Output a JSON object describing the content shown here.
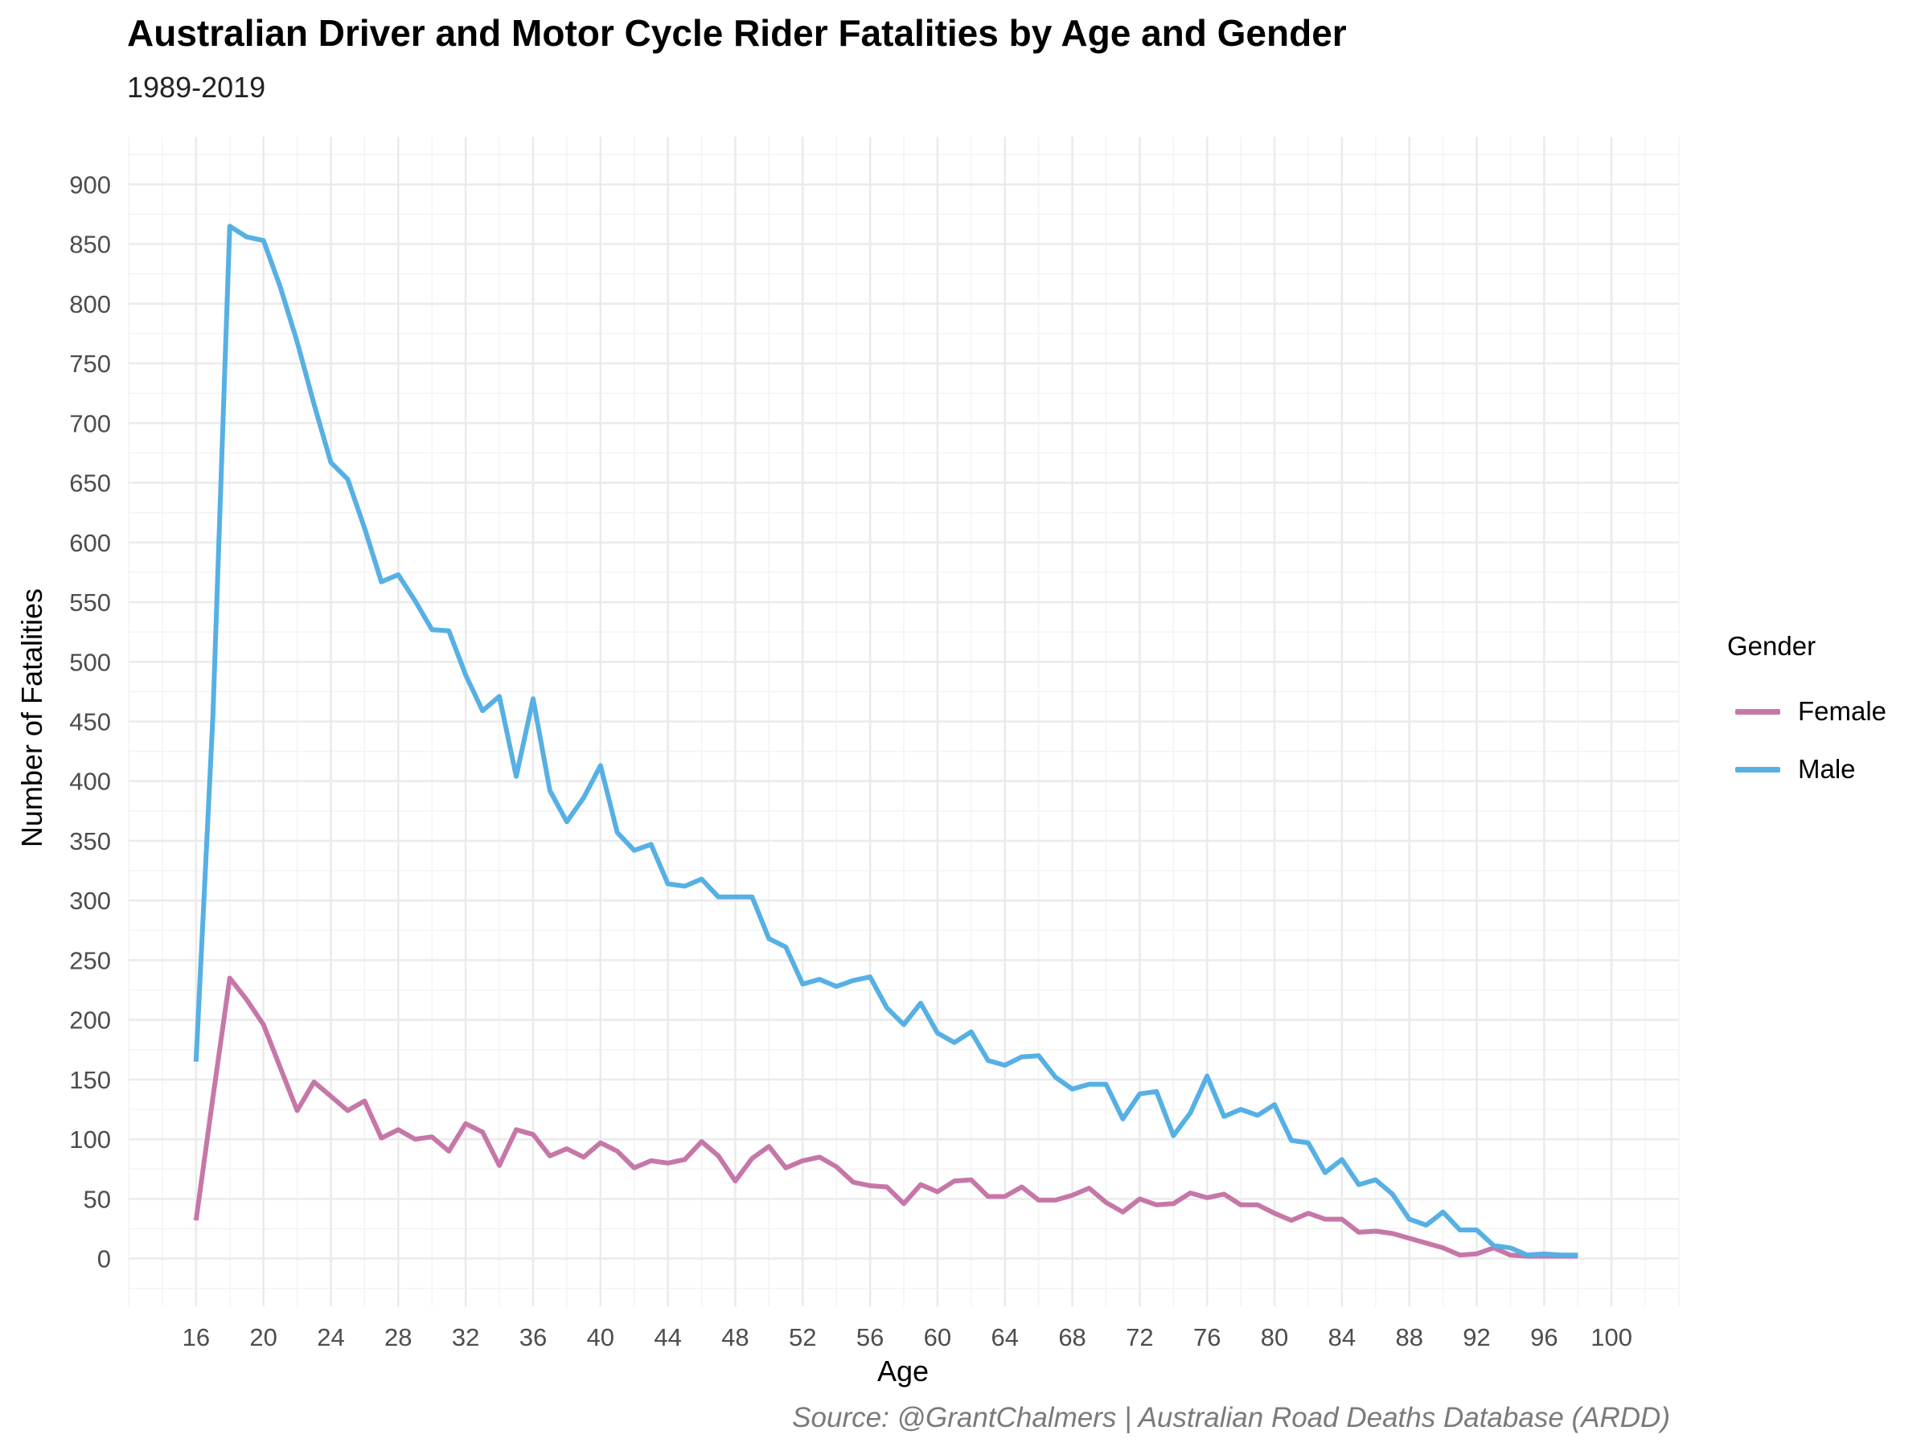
{
  "chart_data": {
    "type": "line",
    "title": "Australian Driver and Motor Cycle Rider Fatalities by Age and Gender",
    "subtitle": "1989-2019",
    "xlabel": "Age",
    "ylabel": "Number of Fatalities",
    "caption": "Source: @GrantChalmers | Australian Road Deaths Database (ARDD)",
    "xlim": [
      12,
      104
    ],
    "ylim": [
      -40,
      940
    ],
    "x_ticks": [
      16,
      20,
      24,
      28,
      32,
      36,
      40,
      44,
      48,
      52,
      56,
      60,
      64,
      68,
      72,
      76,
      80,
      84,
      88,
      92,
      96,
      100
    ],
    "y_ticks": [
      0,
      50,
      100,
      150,
      200,
      250,
      300,
      350,
      400,
      450,
      500,
      550,
      600,
      650,
      700,
      750,
      800,
      850,
      900
    ],
    "grid": true,
    "legend": {
      "title": "Gender",
      "position": "right"
    },
    "x": [
      16,
      17,
      18,
      19,
      20,
      21,
      22,
      23,
      24,
      25,
      26,
      27,
      28,
      29,
      30,
      31,
      32,
      33,
      34,
      35,
      36,
      37,
      38,
      39,
      40,
      41,
      42,
      43,
      44,
      45,
      46,
      47,
      48,
      49,
      50,
      51,
      52,
      53,
      54,
      55,
      56,
      57,
      58,
      59,
      60,
      61,
      62,
      63,
      64,
      65,
      66,
      67,
      68,
      69,
      70,
      71,
      72,
      73,
      74,
      75,
      76,
      77,
      78,
      79,
      80,
      81,
      82,
      83,
      84,
      85,
      86,
      87,
      88,
      89,
      90,
      91,
      92,
      93,
      94,
      95,
      96,
      97,
      98
    ],
    "series": [
      {
        "name": "Female",
        "color": "#c677a8",
        "values": [
          32,
          135,
          235,
          217,
          196,
          160,
          124,
          148,
          136,
          124,
          132,
          101,
          108,
          100,
          102,
          90,
          113,
          106,
          78,
          108,
          104,
          86,
          92,
          85,
          97,
          90,
          76,
          82,
          80,
          83,
          98,
          86,
          65,
          84,
          94,
          76,
          82,
          85,
          77,
          64,
          61,
          60,
          46,
          62,
          56,
          65,
          66,
          52,
          52,
          60,
          49,
          49,
          53,
          59,
          47,
          39,
          50,
          45,
          46,
          55,
          51,
          54,
          45,
          45,
          38,
          32,
          38,
          33,
          33,
          22,
          23,
          21,
          17,
          13,
          9,
          3,
          4,
          9,
          3,
          2,
          2,
          2,
          2
        ]
      },
      {
        "name": "Male",
        "color": "#56b0e4",
        "values": [
          165,
          455,
          865,
          856,
          853,
          814,
          768,
          716,
          667,
          653,
          612,
          567,
          573,
          551,
          527,
          526,
          489,
          459,
          471,
          404,
          469,
          392,
          366,
          386,
          413,
          357,
          342,
          347,
          314,
          312,
          318,
          303,
          303,
          303,
          268,
          261,
          230,
          234,
          228,
          233,
          236,
          210,
          196,
          214,
          189,
          181,
          190,
          166,
          162,
          169,
          170,
          152,
          142,
          146,
          146,
          117,
          138,
          140,
          103,
          122,
          153,
          119,
          125,
          120,
          129,
          99,
          97,
          72,
          83,
          62,
          66,
          54,
          33,
          28,
          39,
          24,
          24,
          11,
          9,
          3,
          4,
          3,
          3
        ]
      }
    ]
  }
}
